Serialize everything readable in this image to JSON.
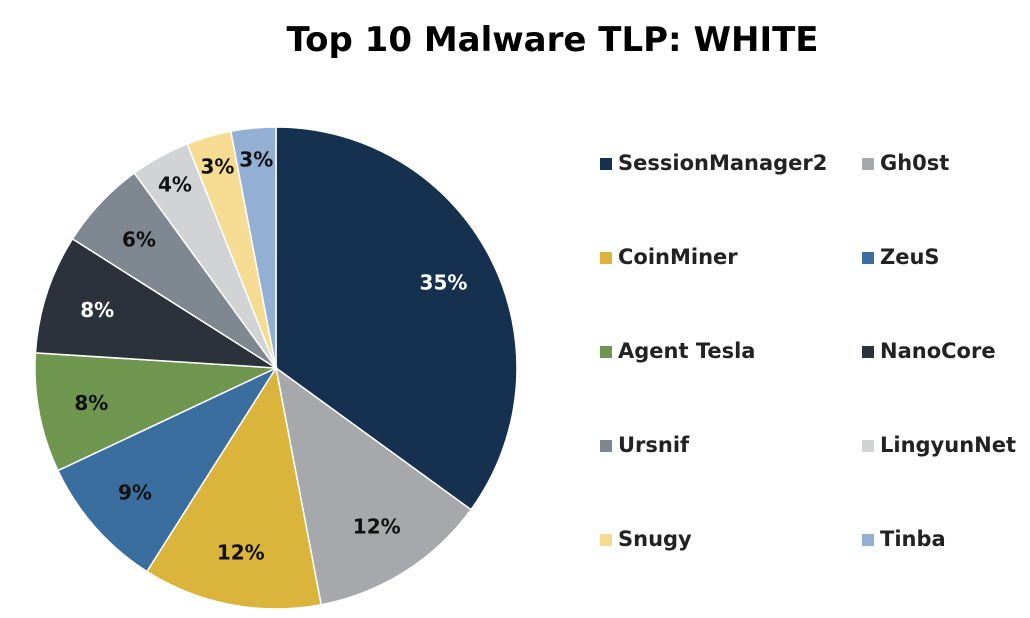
{
  "chart_data": {
    "type": "pie",
    "title": "Top 10 Malware TLP: WHITE",
    "legend_position": "right",
    "categories": [
      "SessionManager2",
      "Gh0st",
      "CoinMiner",
      "ZeuS",
      "Agent Tesla",
      "NanoCore",
      "Ursnif",
      "LingyunNet",
      "Snugy",
      "Tinba"
    ],
    "values": [
      35,
      12,
      12,
      9,
      8,
      8,
      6,
      4,
      3,
      3
    ],
    "labels": [
      "35%",
      "12%",
      "12%",
      "9%",
      "8%",
      "8%",
      "6%",
      "4%",
      "3%",
      "3%"
    ],
    "colors": [
      "#16304f",
      "#a6a8ab",
      "#dbb43b",
      "#3a6e9f",
      "#6f964f",
      "#2b323b",
      "#7f8791",
      "#d2d3d5",
      "#f5dc92",
      "#93afd3"
    ],
    "label_colors": [
      "#ffffff",
      "#111111",
      "#111111",
      "#111111",
      "#111111",
      "#ffffff",
      "#111111",
      "#111111",
      "#111111",
      "#111111"
    ]
  }
}
